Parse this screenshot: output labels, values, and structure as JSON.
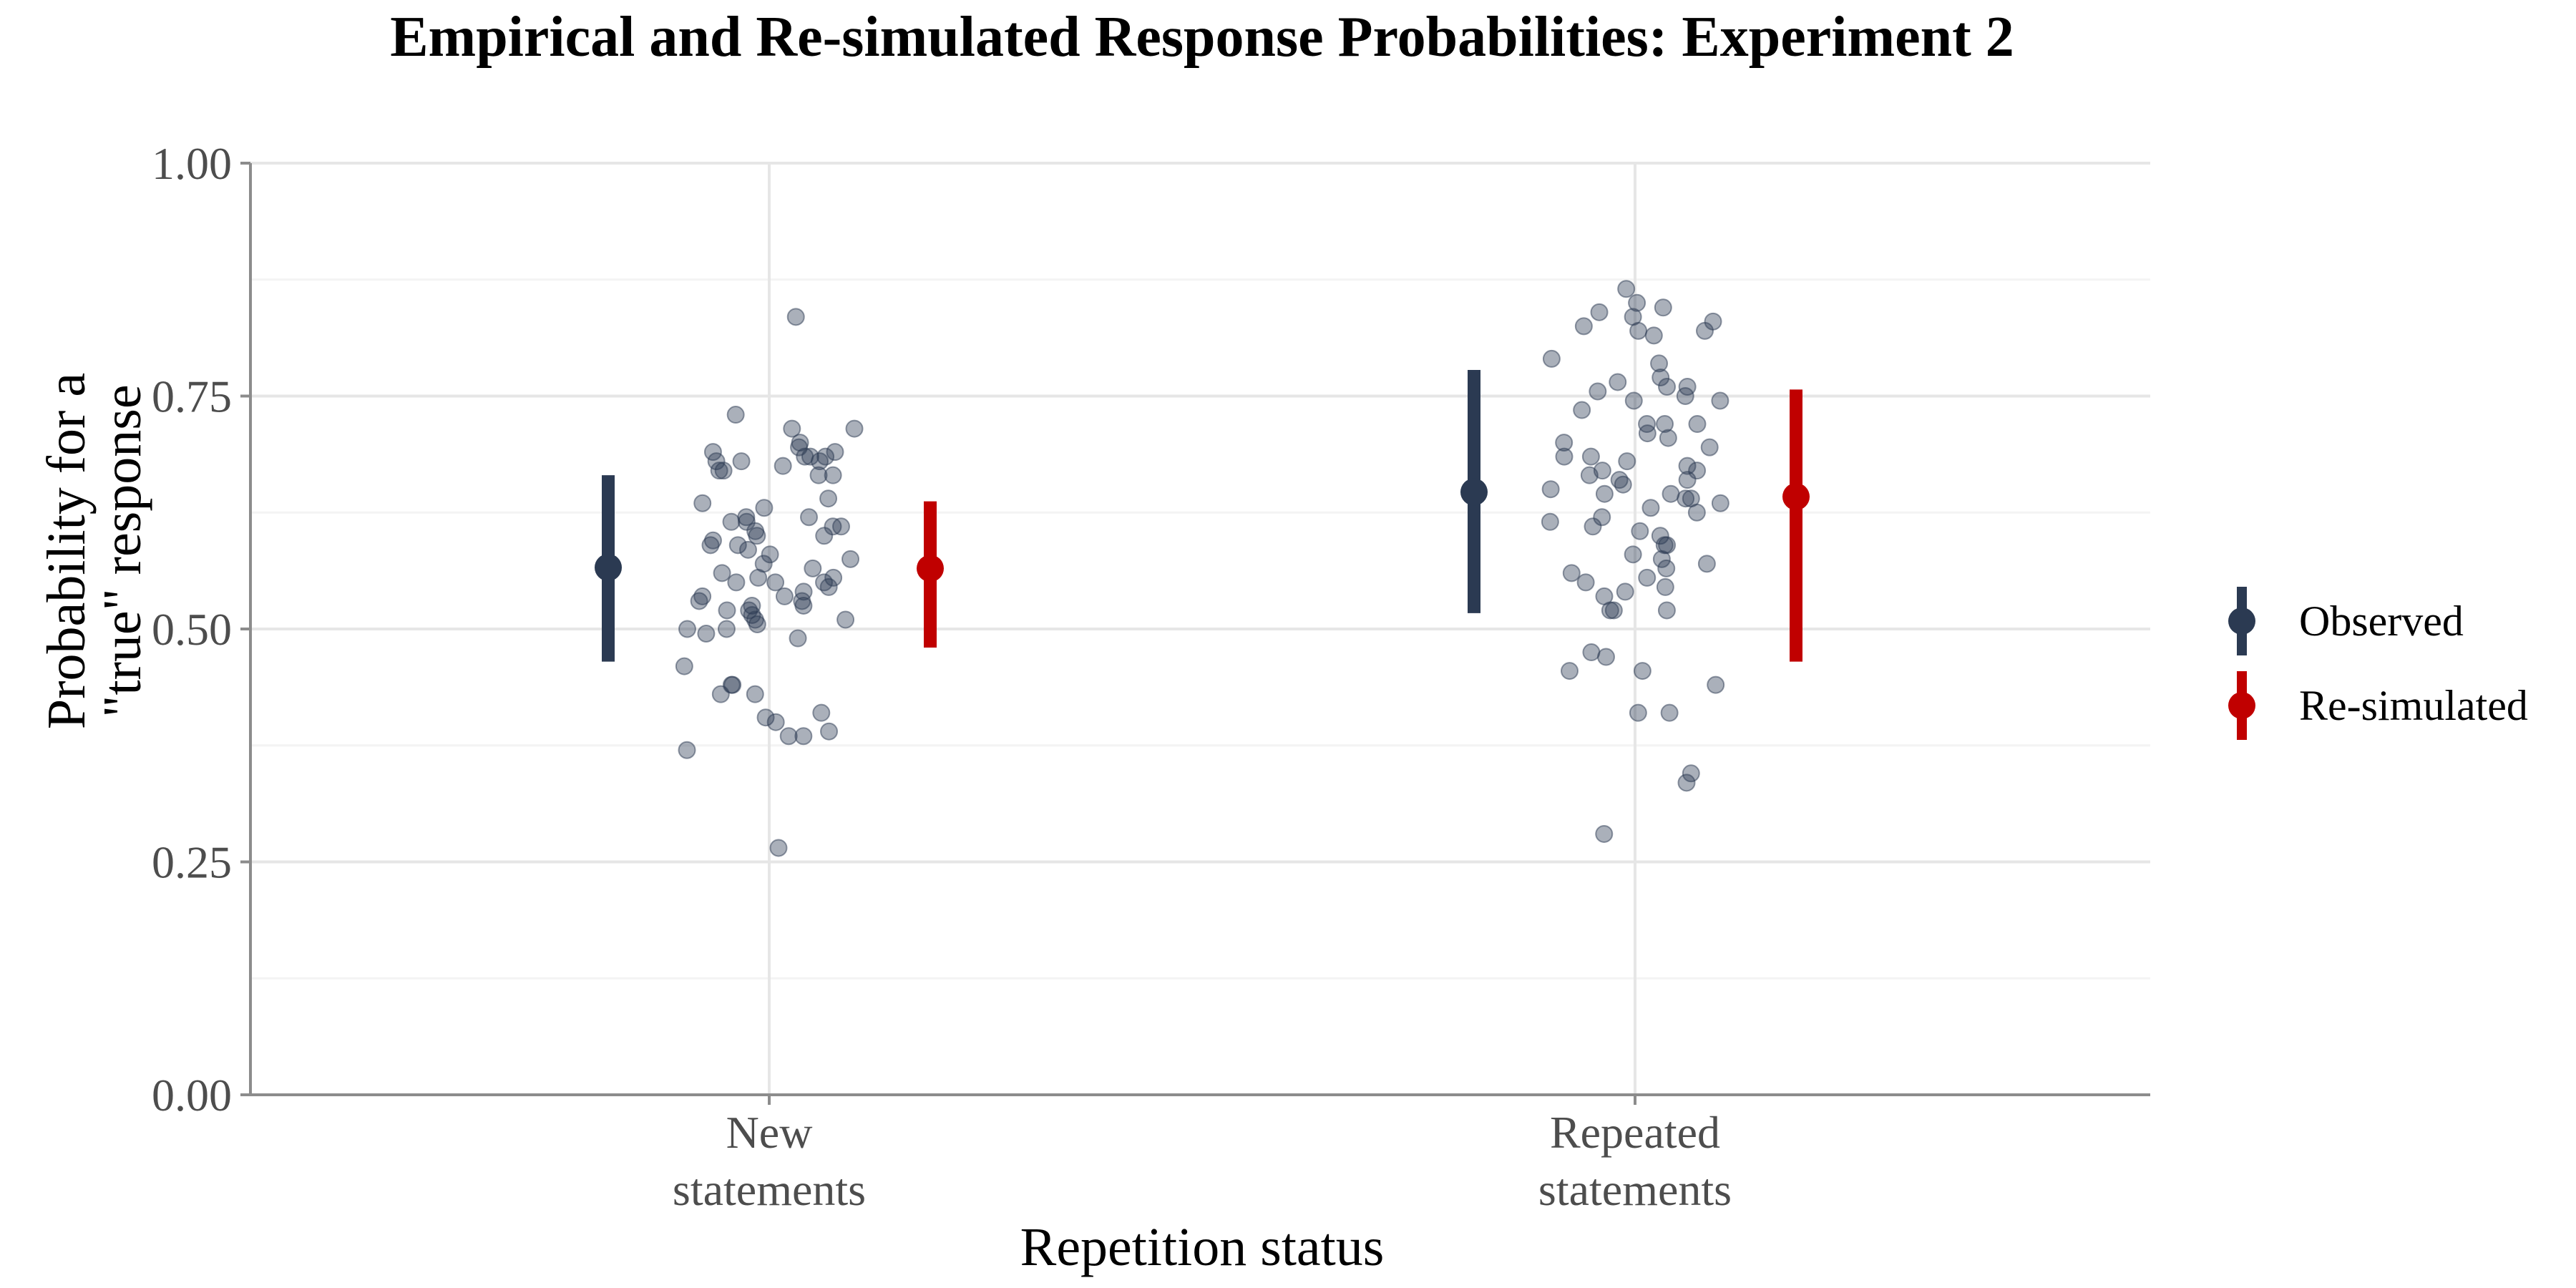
{
  "chart_data": {
    "type": "scatter",
    "title": "Empirical and Re-simulated Response Probabilities: Experiment 2",
    "xlabel": "Repetition status",
    "ylabel_lines": [
      "Probability for a",
      "\"true\" response"
    ],
    "ylim": [
      0,
      1
    ],
    "y_ticks": [
      "0.00",
      "0.25",
      "0.50",
      "0.75",
      "1.00"
    ],
    "y_tick_values": [
      0,
      0.25,
      0.5,
      0.75,
      1.0
    ],
    "categories": [
      {
        "lines": [
          "New",
          "statements"
        ]
      },
      {
        "lines": [
          "Repeated",
          "statements"
        ]
      }
    ],
    "grid": true,
    "legend_position": "right",
    "series": [
      {
        "name": "Observed",
        "color": "#2b3a52",
        "points": [
          {
            "category": 0,
            "y": 0.566,
            "low": 0.465,
            "high": 0.665
          },
          {
            "category": 1,
            "y": 0.647,
            "low": 0.517,
            "high": 0.778
          }
        ]
      },
      {
        "name": "Re-simulated",
        "color": "#c00000",
        "points": [
          {
            "category": 0,
            "y": 0.565,
            "low": 0.48,
            "high": 0.637
          },
          {
            "category": 1,
            "y": 0.642,
            "low": 0.465,
            "high": 0.757
          }
        ]
      }
    ],
    "individual_points": {
      "color": "#2b3a52",
      "opacity": 0.4,
      "groups": [
        {
          "category": 0,
          "values": [
            0.835,
            0.73,
            0.715,
            0.715,
            0.7,
            0.695,
            0.69,
            0.69,
            0.685,
            0.685,
            0.685,
            0.68,
            0.68,
            0.68,
            0.675,
            0.67,
            0.67,
            0.665,
            0.665,
            0.64,
            0.635,
            0.63,
            0.62,
            0.62,
            0.615,
            0.615,
            0.61,
            0.61,
            0.605,
            0.6,
            0.6,
            0.595,
            0.59,
            0.59,
            0.585,
            0.58,
            0.575,
            0.57,
            0.565,
            0.56,
            0.555,
            0.555,
            0.55,
            0.55,
            0.55,
            0.545,
            0.54,
            0.535,
            0.535,
            0.53,
            0.53,
            0.525,
            0.525,
            0.52,
            0.52,
            0.515,
            0.51,
            0.51,
            0.505,
            0.5,
            0.5,
            0.495,
            0.49,
            0.46,
            0.44,
            0.44,
            0.43,
            0.43,
            0.41,
            0.405,
            0.4,
            0.39,
            0.385,
            0.385,
            0.37,
            0.265
          ]
        },
        {
          "category": 1,
          "values": [
            0.865,
            0.85,
            0.845,
            0.84,
            0.835,
            0.83,
            0.825,
            0.82,
            0.82,
            0.815,
            0.79,
            0.785,
            0.77,
            0.765,
            0.76,
            0.76,
            0.755,
            0.75,
            0.745,
            0.745,
            0.735,
            0.72,
            0.72,
            0.72,
            0.71,
            0.705,
            0.7,
            0.695,
            0.685,
            0.685,
            0.68,
            0.675,
            0.67,
            0.67,
            0.665,
            0.66,
            0.66,
            0.655,
            0.65,
            0.645,
            0.645,
            0.64,
            0.64,
            0.635,
            0.63,
            0.625,
            0.62,
            0.615,
            0.61,
            0.605,
            0.6,
            0.59,
            0.59,
            0.58,
            0.575,
            0.57,
            0.565,
            0.56,
            0.555,
            0.55,
            0.545,
            0.54,
            0.535,
            0.52,
            0.52,
            0.52,
            0.475,
            0.47,
            0.455,
            0.455,
            0.44,
            0.41,
            0.41,
            0.345,
            0.335,
            0.28
          ]
        }
      ]
    }
  }
}
